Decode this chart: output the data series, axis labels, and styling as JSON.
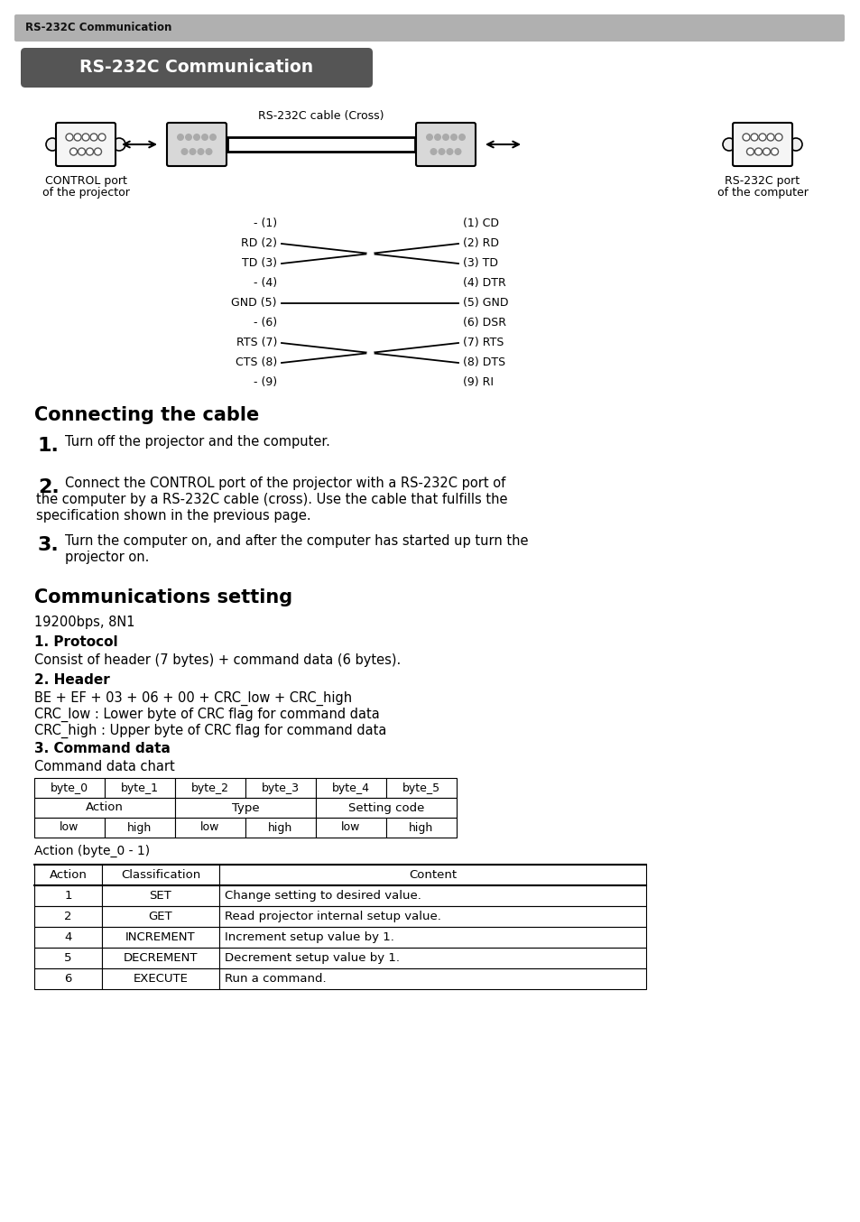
{
  "page_bg": "#ffffff",
  "header_text": "RS-232C Communication",
  "title_text": "RS-232C Communication",
  "section1_title": "Connecting the cable",
  "section2_title": "Communications setting",
  "baud_rate": "19200bps, 8N1",
  "protocol_title": "1. Protocol",
  "protocol_text": "Consist of header (7 bytes) + command data (6 bytes).",
  "header_title": "2. Header",
  "header_text1": "BE + EF + 03 + 06 + 00 + CRC_low + CRC_high",
  "header_text2": "CRC_low : Lower byte of CRC flag for command data",
  "header_text3": "CRC_high : Upper byte of CRC flag for command data",
  "cmd_title": "3. Command data",
  "cmd_subtitle": "Command data chart",
  "action_note": "Action (byte_0 - 1)",
  "step1": "Turn off the projector and the computer.",
  "step2a": "Connect the CONTROL port of the projector with a RS-232C port of",
  "step2b": "the computer by a RS-232C cable (cross). Use the cable that fulfills the",
  "step2c": "specification shown in the previous page.",
  "step3a": "Turn the computer on, and after the computer has started up turn the",
  "step3b": "projector on.",
  "pin_left": [
    "- (1)",
    "RD (2)",
    "TD (3)",
    "- (4)",
    "GND (5)",
    "- (6)",
    "RTS (7)",
    "CTS (8)",
    "- (9)"
  ],
  "pin_right": [
    "(1) CD",
    "(2) RD",
    "(3) TD",
    "(4) DTR",
    "(5) GND",
    "(6) DSR",
    "(7) RTS",
    "(8) DTS",
    "(9) RI"
  ],
  "byte_headers": [
    "byte_0",
    "byte_1",
    "byte_2",
    "byte_3",
    "byte_4",
    "byte_5"
  ],
  "byte_row3": [
    "low",
    "high",
    "low",
    "high",
    "low",
    "high"
  ],
  "action_table_headers": [
    "Action",
    "Classification",
    "Content"
  ],
  "action_table_rows": [
    [
      "1",
      "SET",
      "Change setting to desired value."
    ],
    [
      "2",
      "GET",
      "Read projector internal setup value."
    ],
    [
      "4",
      "INCREMENT",
      "Increment setup value by 1."
    ],
    [
      "5",
      "DECREMENT",
      "Decrement setup value by 1."
    ],
    [
      "6",
      "EXECUTE",
      "Run a command."
    ]
  ],
  "control_port_label1": "CONTROL port",
  "control_port_label2": "of the projector",
  "cable_label": "RS-232C cable (Cross)",
  "computer_port_label1": "RS-232C port",
  "computer_port_label2": "of the computer"
}
